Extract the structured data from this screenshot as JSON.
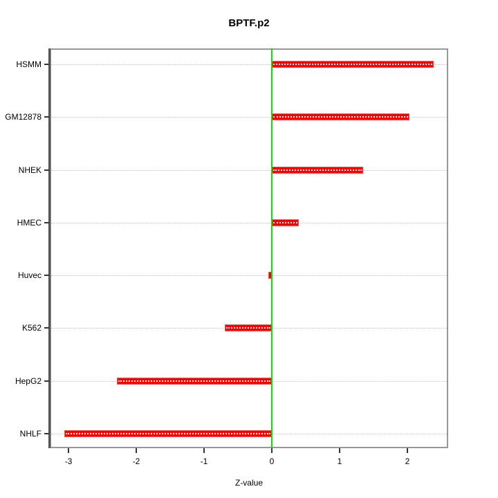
{
  "chart_data": {
    "type": "bar",
    "orientation": "horizontal",
    "title": "BPTF.p2",
    "xlabel": "Z-value",
    "ylabel": "",
    "categories": [
      "HSMM",
      "GM12878",
      "NHEK",
      "HMEC",
      "Huvec",
      "K562",
      "HepG2",
      "NHLF"
    ],
    "values": [
      2.39,
      2.03,
      1.35,
      0.4,
      -0.05,
      -0.69,
      -2.29,
      -3.06
    ],
    "x_ticks": [
      -3,
      -2,
      -1,
      0,
      1,
      2
    ],
    "xlim": [
      -3.276,
      2.602
    ],
    "grid": "horizontal-dotted",
    "legend": "none",
    "zero_line_value": 0,
    "colors": {
      "bar_fill": "#ff0000",
      "bar_border": "#ff4a4a",
      "bar_centerline": "#ffffff",
      "zero_line": "#00e400",
      "gridline": "#c6c6c6",
      "plot_border": "#979797",
      "axis_line": "#555555",
      "tick": "#333333",
      "text": "#000000",
      "background": "#ffffff"
    }
  }
}
